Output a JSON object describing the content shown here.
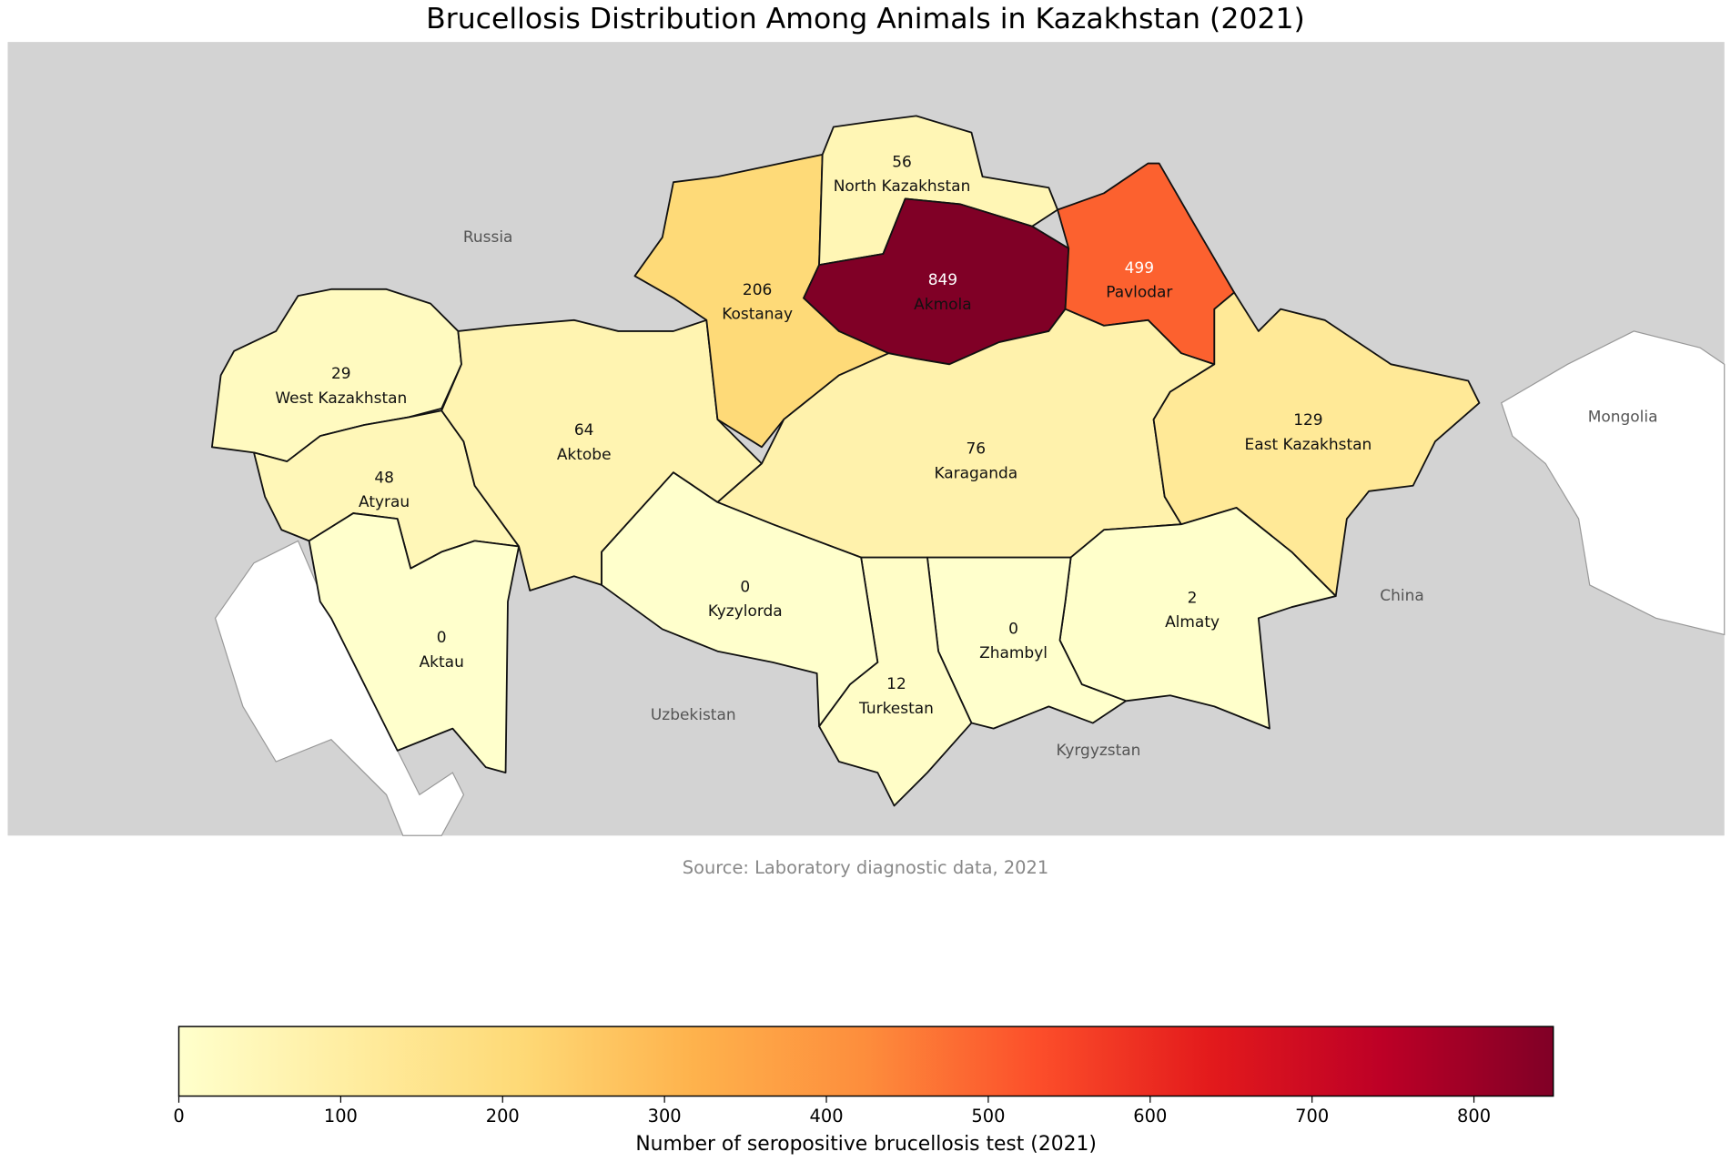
{
  "map": {
    "type": "choropleth",
    "title": "Brucellosis Distribution Among Animals in Kazakhstan (2021)",
    "source": "Source: Laboratory diagnostic data, 2021",
    "colormap": "YlOrRd",
    "regions": [
      {
        "name": "West Kazakhstan",
        "value": 29
      },
      {
        "name": "Atyrau",
        "value": 48
      },
      {
        "name": "Aktau",
        "value": 0
      },
      {
        "name": "Aktobe",
        "value": 64
      },
      {
        "name": "Kostanay",
        "value": 206
      },
      {
        "name": "North Kazakhstan",
        "value": 56
      },
      {
        "name": "Akmola",
        "value": 849
      },
      {
        "name": "Pavlodar",
        "value": 499
      },
      {
        "name": "Karaganda",
        "value": 76
      },
      {
        "name": "East Kazakhstan",
        "value": 129
      },
      {
        "name": "Almaty",
        "value": 2
      },
      {
        "name": "Zhambyl",
        "value": 0
      },
      {
        "name": "Turkestan",
        "value": 12
      },
      {
        "name": "Kyzylorda",
        "value": 0
      }
    ],
    "countries": [
      "Russia",
      "Mongolia",
      "China",
      "Uzbekistan",
      "Kyrgyzstan"
    ],
    "colorbar": {
      "label": "Number of seropositive brucellosis test (2021)",
      "xlim": [
        0,
        849
      ],
      "xticks": [
        0,
        100,
        200,
        300,
        400,
        500,
        600,
        700,
        800
      ]
    }
  }
}
